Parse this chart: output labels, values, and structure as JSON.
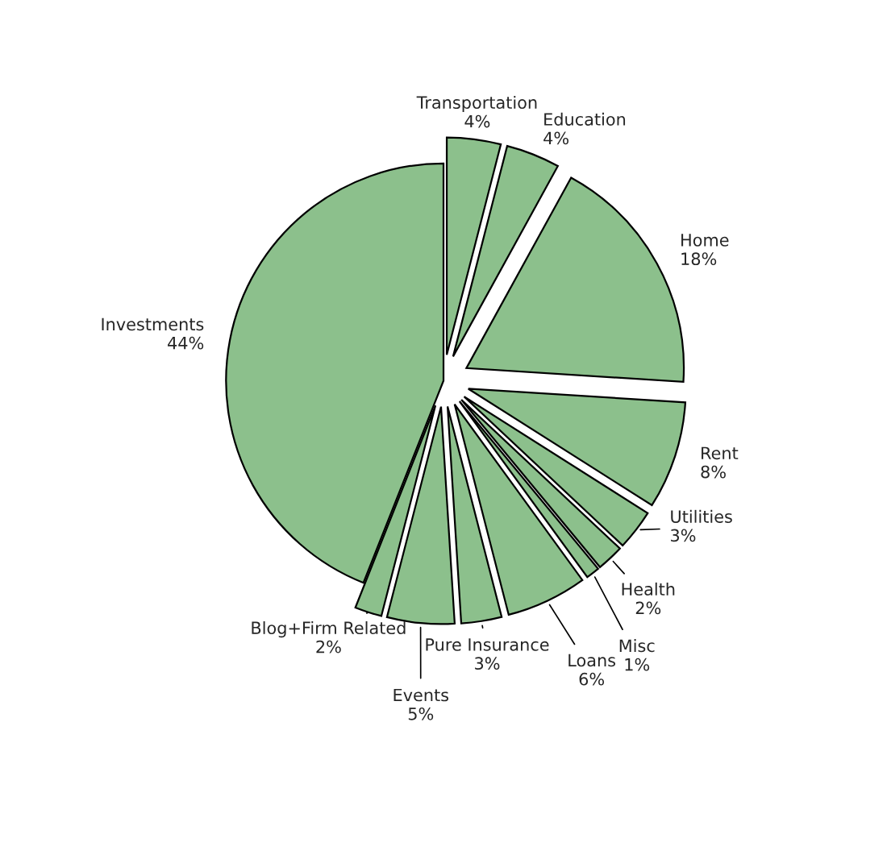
{
  "chart_data": {
    "type": "pie",
    "categories": [
      "Transportation",
      "Education",
      "Home",
      "Rent",
      "Utilities",
      "Health",
      "Misc",
      "Loans",
      "Pure Insurance",
      "Events",
      "Blog+Firm Related",
      "Investments"
    ],
    "values": [
      4,
      4,
      18,
      8,
      3,
      2,
      1,
      6,
      3,
      5,
      2,
      44
    ],
    "value_labels": [
      "4%",
      "4%",
      "18%",
      "8%",
      "3%",
      "2%",
      "1%",
      "6%",
      "3%",
      "5%",
      "2%",
      "44%"
    ],
    "colors": [
      "#8cc08c",
      "#8cc08c",
      "#8cc08c",
      "#8cc08c",
      "#8cc08c",
      "#8cc08c",
      "#8cc08c",
      "#8cc08c",
      "#8cc08c",
      "#8cc08c",
      "#8cc08c",
      "#8cc08c"
    ]
  }
}
